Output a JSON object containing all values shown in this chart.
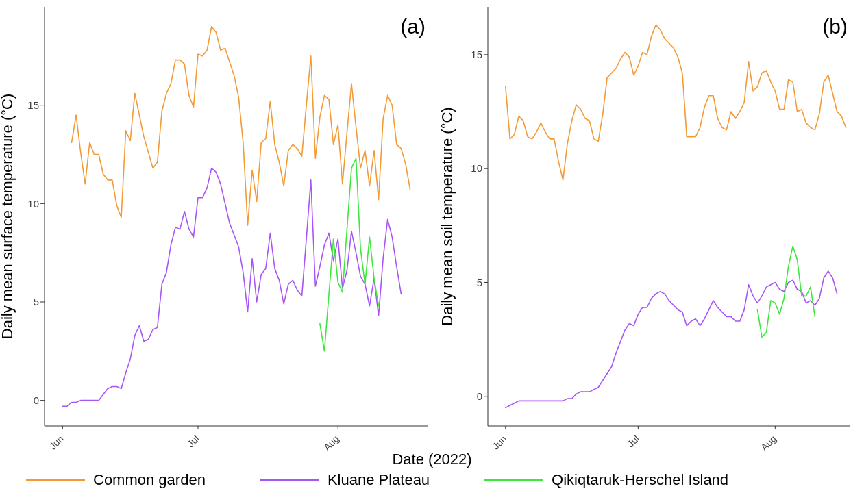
{
  "chart_data": [
    {
      "type": "line",
      "ylabel": "Daily mean surface temperature (°C)",
      "xlabel": "Date (2022)",
      "annotations": [
        "(a)"
      ],
      "legend": "bottom",
      "x": [
        "2022-06-01",
        "2022-06-02",
        "2022-06-03",
        "2022-06-04",
        "2022-06-05",
        "2022-06-06",
        "2022-06-07",
        "2022-06-08",
        "2022-06-09",
        "2022-06-10",
        "2022-06-11",
        "2022-06-12",
        "2022-06-13",
        "2022-06-14",
        "2022-06-15",
        "2022-06-16",
        "2022-06-17",
        "2022-06-18",
        "2022-06-19",
        "2022-06-20",
        "2022-06-21",
        "2022-06-22",
        "2022-06-23",
        "2022-06-24",
        "2022-06-25",
        "2022-06-26",
        "2022-06-27",
        "2022-06-28",
        "2022-06-29",
        "2022-06-30",
        "2022-07-01",
        "2022-07-02",
        "2022-07-03",
        "2022-07-04",
        "2022-07-05",
        "2022-07-06",
        "2022-07-07",
        "2022-07-08",
        "2022-07-09",
        "2022-07-10",
        "2022-07-11",
        "2022-07-12",
        "2022-07-13",
        "2022-07-14",
        "2022-07-15",
        "2022-07-16",
        "2022-07-17",
        "2022-07-18",
        "2022-07-19",
        "2022-07-20",
        "2022-07-21",
        "2022-07-22",
        "2022-07-23",
        "2022-07-24",
        "2022-07-25",
        "2022-07-26",
        "2022-07-27",
        "2022-07-28",
        "2022-07-29",
        "2022-07-30",
        "2022-07-31",
        "2022-08-01",
        "2022-08-02",
        "2022-08-03",
        "2022-08-04",
        "2022-08-05",
        "2022-08-06",
        "2022-08-07",
        "2022-08-08",
        "2022-08-09",
        "2022-08-10",
        "2022-08-11",
        "2022-08-12",
        "2022-08-13",
        "2022-08-14",
        "2022-08-15",
        "2022-08-16",
        "2022-08-17"
      ],
      "xlim": [
        "2022-05-28",
        "2022-08-21"
      ],
      "xticks": [
        {
          "value": "2022-06-01",
          "label": "Jun"
        },
        {
          "value": "2022-07-01",
          "label": "Jul"
        },
        {
          "value": "2022-08-01",
          "label": "Aug"
        }
      ],
      "ylim": [
        -1.3,
        20
      ],
      "yticks": [
        0,
        5,
        10,
        15
      ],
      "series": [
        {
          "name": "Common garden",
          "color": "#f39a36",
          "values": [
            null,
            null,
            13.1,
            14.5,
            12.6,
            11.0,
            13.1,
            12.5,
            12.5,
            11.5,
            11.2,
            11.2,
            9.9,
            9.3,
            13.7,
            13.2,
            15.6,
            14.5,
            13.4,
            12.6,
            11.8,
            12.1,
            14.7,
            15.6,
            16.1,
            17.3,
            17.3,
            17.1,
            15.5,
            14.9,
            17.6,
            17.5,
            17.8,
            19.0,
            18.7,
            17.8,
            17.9,
            17.2,
            16.5,
            15.4,
            13.1,
            8.9,
            11.7,
            10.1,
            13.1,
            13.3,
            15.2,
            13.0,
            12.1,
            10.9,
            12.7,
            13.0,
            12.8,
            12.4,
            15.0,
            17.5,
            12.3,
            14.4,
            15.5,
            15.3,
            13.0,
            14.0,
            11.0,
            13.6,
            16.1,
            13.9,
            11.8,
            12.7,
            10.9,
            12.7,
            10.2,
            14.3,
            15.5,
            15.0,
            13.0,
            12.8,
            12.0,
            10.7
          ]
        },
        {
          "name": "Kluane Plateau",
          "color": "#a855f7",
          "values": [
            -0.3,
            -0.3,
            -0.1,
            -0.1,
            0.0,
            0.0,
            0.0,
            0.0,
            0.0,
            0.3,
            0.6,
            0.7,
            0.7,
            0.6,
            1.4,
            2.1,
            3.3,
            3.8,
            3.0,
            3.1,
            3.6,
            3.7,
            5.9,
            6.5,
            7.9,
            8.8,
            8.7,
            9.6,
            8.7,
            8.3,
            10.3,
            10.3,
            10.8,
            11.8,
            11.6,
            11.0,
            10.0,
            9.0,
            8.4,
            7.8,
            6.5,
            4.5,
            7.2,
            5.0,
            6.4,
            6.7,
            8.5,
            6.7,
            6.1,
            4.9,
            5.9,
            6.1,
            5.6,
            5.3,
            8.2,
            11.2,
            5.8,
            6.8,
            7.9,
            8.5,
            7.1,
            8.2,
            5.7,
            6.6,
            8.6,
            7.5,
            6.3,
            5.9,
            4.8,
            6.2,
            4.3,
            7.2,
            9.2,
            8.3,
            6.8,
            5.4,
            null,
            null
          ]
        },
        {
          "name": "Qikiqtaruk-Herschel Island",
          "color": "#3ee63e",
          "values": [
            null,
            null,
            null,
            null,
            null,
            null,
            null,
            null,
            null,
            null,
            null,
            null,
            null,
            null,
            null,
            null,
            null,
            null,
            null,
            null,
            null,
            null,
            null,
            null,
            null,
            null,
            null,
            null,
            null,
            null,
            null,
            null,
            null,
            null,
            null,
            null,
            null,
            null,
            null,
            null,
            null,
            null,
            null,
            null,
            null,
            null,
            null,
            null,
            null,
            null,
            null,
            null,
            null,
            null,
            null,
            null,
            null,
            3.9,
            2.5,
            5.4,
            8.2,
            6.0,
            5.5,
            8.7,
            11.8,
            12.3,
            7.7,
            5.9,
            8.3,
            6.2,
            4.8,
            null,
            null,
            null,
            null,
            null,
            null,
            null
          ]
        }
      ]
    },
    {
      "type": "line",
      "ylabel": "Daily mean soil temperature (°C)",
      "annotations": [
        "(b)"
      ],
      "x": [
        "2022-06-01",
        "2022-06-02",
        "2022-06-03",
        "2022-06-04",
        "2022-06-05",
        "2022-06-06",
        "2022-06-07",
        "2022-06-08",
        "2022-06-09",
        "2022-06-10",
        "2022-06-11",
        "2022-06-12",
        "2022-06-13",
        "2022-06-14",
        "2022-06-15",
        "2022-06-16",
        "2022-06-17",
        "2022-06-18",
        "2022-06-19",
        "2022-06-20",
        "2022-06-21",
        "2022-06-22",
        "2022-06-23",
        "2022-06-24",
        "2022-06-25",
        "2022-06-26",
        "2022-06-27",
        "2022-06-28",
        "2022-06-29",
        "2022-06-30",
        "2022-07-01",
        "2022-07-02",
        "2022-07-03",
        "2022-07-04",
        "2022-07-05",
        "2022-07-06",
        "2022-07-07",
        "2022-07-08",
        "2022-07-09",
        "2022-07-10",
        "2022-07-11",
        "2022-07-12",
        "2022-07-13",
        "2022-07-14",
        "2022-07-15",
        "2022-07-16",
        "2022-07-17",
        "2022-07-18",
        "2022-07-19",
        "2022-07-20",
        "2022-07-21",
        "2022-07-22",
        "2022-07-23",
        "2022-07-24",
        "2022-07-25",
        "2022-07-26",
        "2022-07-27",
        "2022-07-28",
        "2022-07-29",
        "2022-07-30",
        "2022-07-31",
        "2022-08-01",
        "2022-08-02",
        "2022-08-03",
        "2022-08-04",
        "2022-08-05",
        "2022-08-06",
        "2022-08-07",
        "2022-08-08",
        "2022-08-09",
        "2022-08-10",
        "2022-08-11",
        "2022-08-12",
        "2022-08-13",
        "2022-08-14",
        "2022-08-15",
        "2022-08-16",
        "2022-08-17"
      ],
      "xlim": [
        "2022-05-28",
        "2022-08-18"
      ],
      "xticks": [
        {
          "value": "2022-06-01",
          "label": "Jun"
        },
        {
          "value": "2022-07-01",
          "label": "Jul"
        },
        {
          "value": "2022-08-01",
          "label": "Aug"
        }
      ],
      "ylim": [
        -1.3,
        17.1
      ],
      "yticks": [
        0,
        5,
        10,
        15
      ],
      "series": [
        {
          "color": "#f39a36",
          "values": [
            13.6,
            11.3,
            11.5,
            12.3,
            12.1,
            11.4,
            11.3,
            11.6,
            12.0,
            11.6,
            11.3,
            11.3,
            10.3,
            9.5,
            11.1,
            12.1,
            12.8,
            12.6,
            12.2,
            12.1,
            11.3,
            11.2,
            12.4,
            14.0,
            14.2,
            14.4,
            14.8,
            15.1,
            14.9,
            14.1,
            14.5,
            15.1,
            15.0,
            15.8,
            16.3,
            16.1,
            15.7,
            15.5,
            15.3,
            14.9,
            14.2,
            11.4,
            11.4,
            11.4,
            11.8,
            12.7,
            13.2,
            13.2,
            12.2,
            11.8,
            11.7,
            12.5,
            12.2,
            12.5,
            12.9,
            14.7,
            13.4,
            13.6,
            14.2,
            14.3,
            13.8,
            13.4,
            12.6,
            12.6,
            13.9,
            13.8,
            12.5,
            12.6,
            12.0,
            11.8,
            11.7,
            12.4,
            13.8,
            14.1,
            13.3,
            12.5,
            12.3,
            11.8
          ]
        },
        {
          "color": "#a855f7",
          "values": [
            -0.5,
            -0.4,
            -0.3,
            -0.2,
            -0.2,
            -0.2,
            -0.2,
            -0.2,
            -0.2,
            -0.2,
            -0.2,
            -0.2,
            -0.2,
            -0.2,
            -0.1,
            -0.1,
            0.1,
            0.2,
            0.2,
            0.2,
            0.3,
            0.4,
            0.7,
            1.0,
            1.3,
            1.9,
            2.4,
            2.9,
            3.2,
            3.1,
            3.6,
            3.9,
            3.9,
            4.3,
            4.5,
            4.6,
            4.5,
            4.2,
            4.0,
            3.8,
            3.7,
            3.1,
            3.3,
            3.4,
            3.1,
            3.4,
            3.8,
            4.2,
            3.9,
            3.7,
            3.5,
            3.5,
            3.3,
            3.3,
            3.8,
            4.9,
            4.4,
            4.1,
            4.4,
            4.8,
            4.9,
            5.0,
            4.7,
            4.6,
            5.0,
            5.1,
            4.7,
            4.6,
            4.1,
            4.2,
            4.0,
            4.3,
            5.2,
            5.5,
            5.2,
            4.5,
            null,
            null
          ]
        },
        {
          "color": "#3ee63e",
          "values": [
            null,
            null,
            null,
            null,
            null,
            null,
            null,
            null,
            null,
            null,
            null,
            null,
            null,
            null,
            null,
            null,
            null,
            null,
            null,
            null,
            null,
            null,
            null,
            null,
            null,
            null,
            null,
            null,
            null,
            null,
            null,
            null,
            null,
            null,
            null,
            null,
            null,
            null,
            null,
            null,
            null,
            null,
            null,
            null,
            null,
            null,
            null,
            null,
            null,
            null,
            null,
            null,
            null,
            null,
            null,
            null,
            null,
            3.8,
            2.6,
            2.8,
            4.2,
            4.1,
            3.6,
            4.3,
            5.7,
            6.6,
            6.0,
            4.4,
            4.4,
            4.8,
            3.5,
            null,
            null,
            null,
            null,
            null,
            null,
            null
          ]
        }
      ]
    }
  ]
}
